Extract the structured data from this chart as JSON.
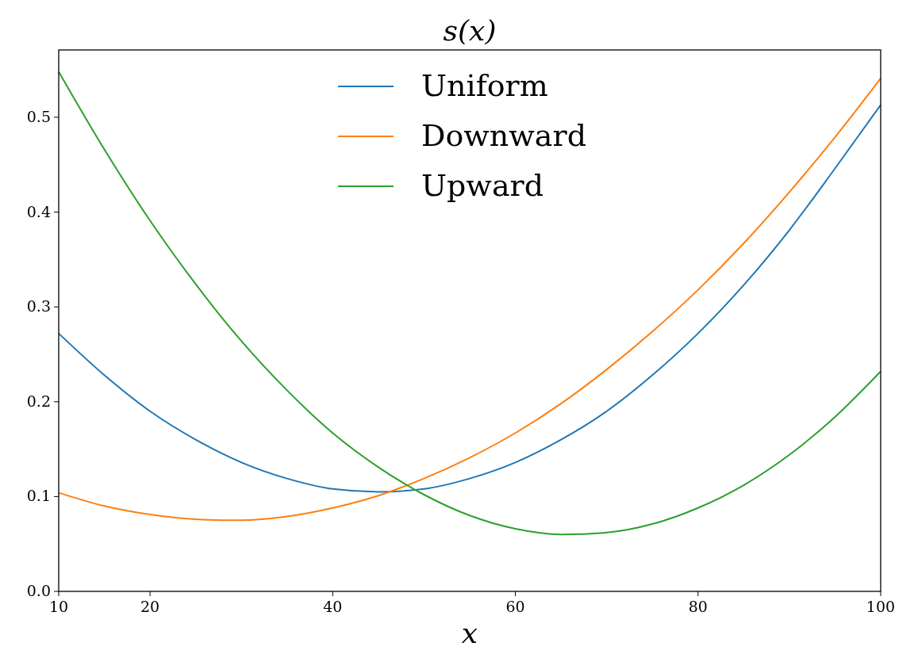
{
  "chart_data": {
    "type": "line",
    "title": "s(x)",
    "xlabel": "x",
    "x": [
      10,
      15,
      20,
      25,
      30,
      35,
      40,
      45,
      50,
      55,
      60,
      65,
      70,
      75,
      80,
      85,
      90,
      95,
      100
    ],
    "series": [
      {
        "name": "Uniform",
        "color": "#1f77b4",
        "values": [
          0.272,
          0.228,
          0.19,
          0.16,
          0.136,
          0.119,
          0.108,
          0.105,
          0.108,
          0.119,
          0.136,
          0.16,
          0.19,
          0.228,
          0.272,
          0.323,
          0.381,
          0.446,
          0.513
        ]
      },
      {
        "name": "Downward",
        "color": "#ff7f0e",
        "values": [
          0.104,
          0.09,
          0.081,
          0.076,
          0.075,
          0.079,
          0.088,
          0.101,
          0.119,
          0.141,
          0.167,
          0.198,
          0.234,
          0.274,
          0.318,
          0.367,
          0.421,
          0.479,
          0.541
        ]
      },
      {
        "name": "Upward",
        "color": "#2ca02c",
        "values": [
          0.548,
          0.466,
          0.391,
          0.324,
          0.264,
          0.212,
          0.167,
          0.131,
          0.102,
          0.08,
          0.066,
          0.06,
          0.062,
          0.071,
          0.088,
          0.112,
          0.144,
          0.184,
          0.232
        ]
      }
    ],
    "xlim": [
      10,
      100
    ],
    "xticks": [
      10,
      20,
      40,
      60,
      80,
      100
    ],
    "ylim": [
      0,
      0.571
    ],
    "yticks": [
      {
        "value": 0,
        "label": "0.0"
      },
      0.1,
      0.2,
      0.3,
      0.4,
      0.5
    ],
    "legend": "top",
    "grid": false,
    "marker": "none",
    "line_style": "solid"
  }
}
